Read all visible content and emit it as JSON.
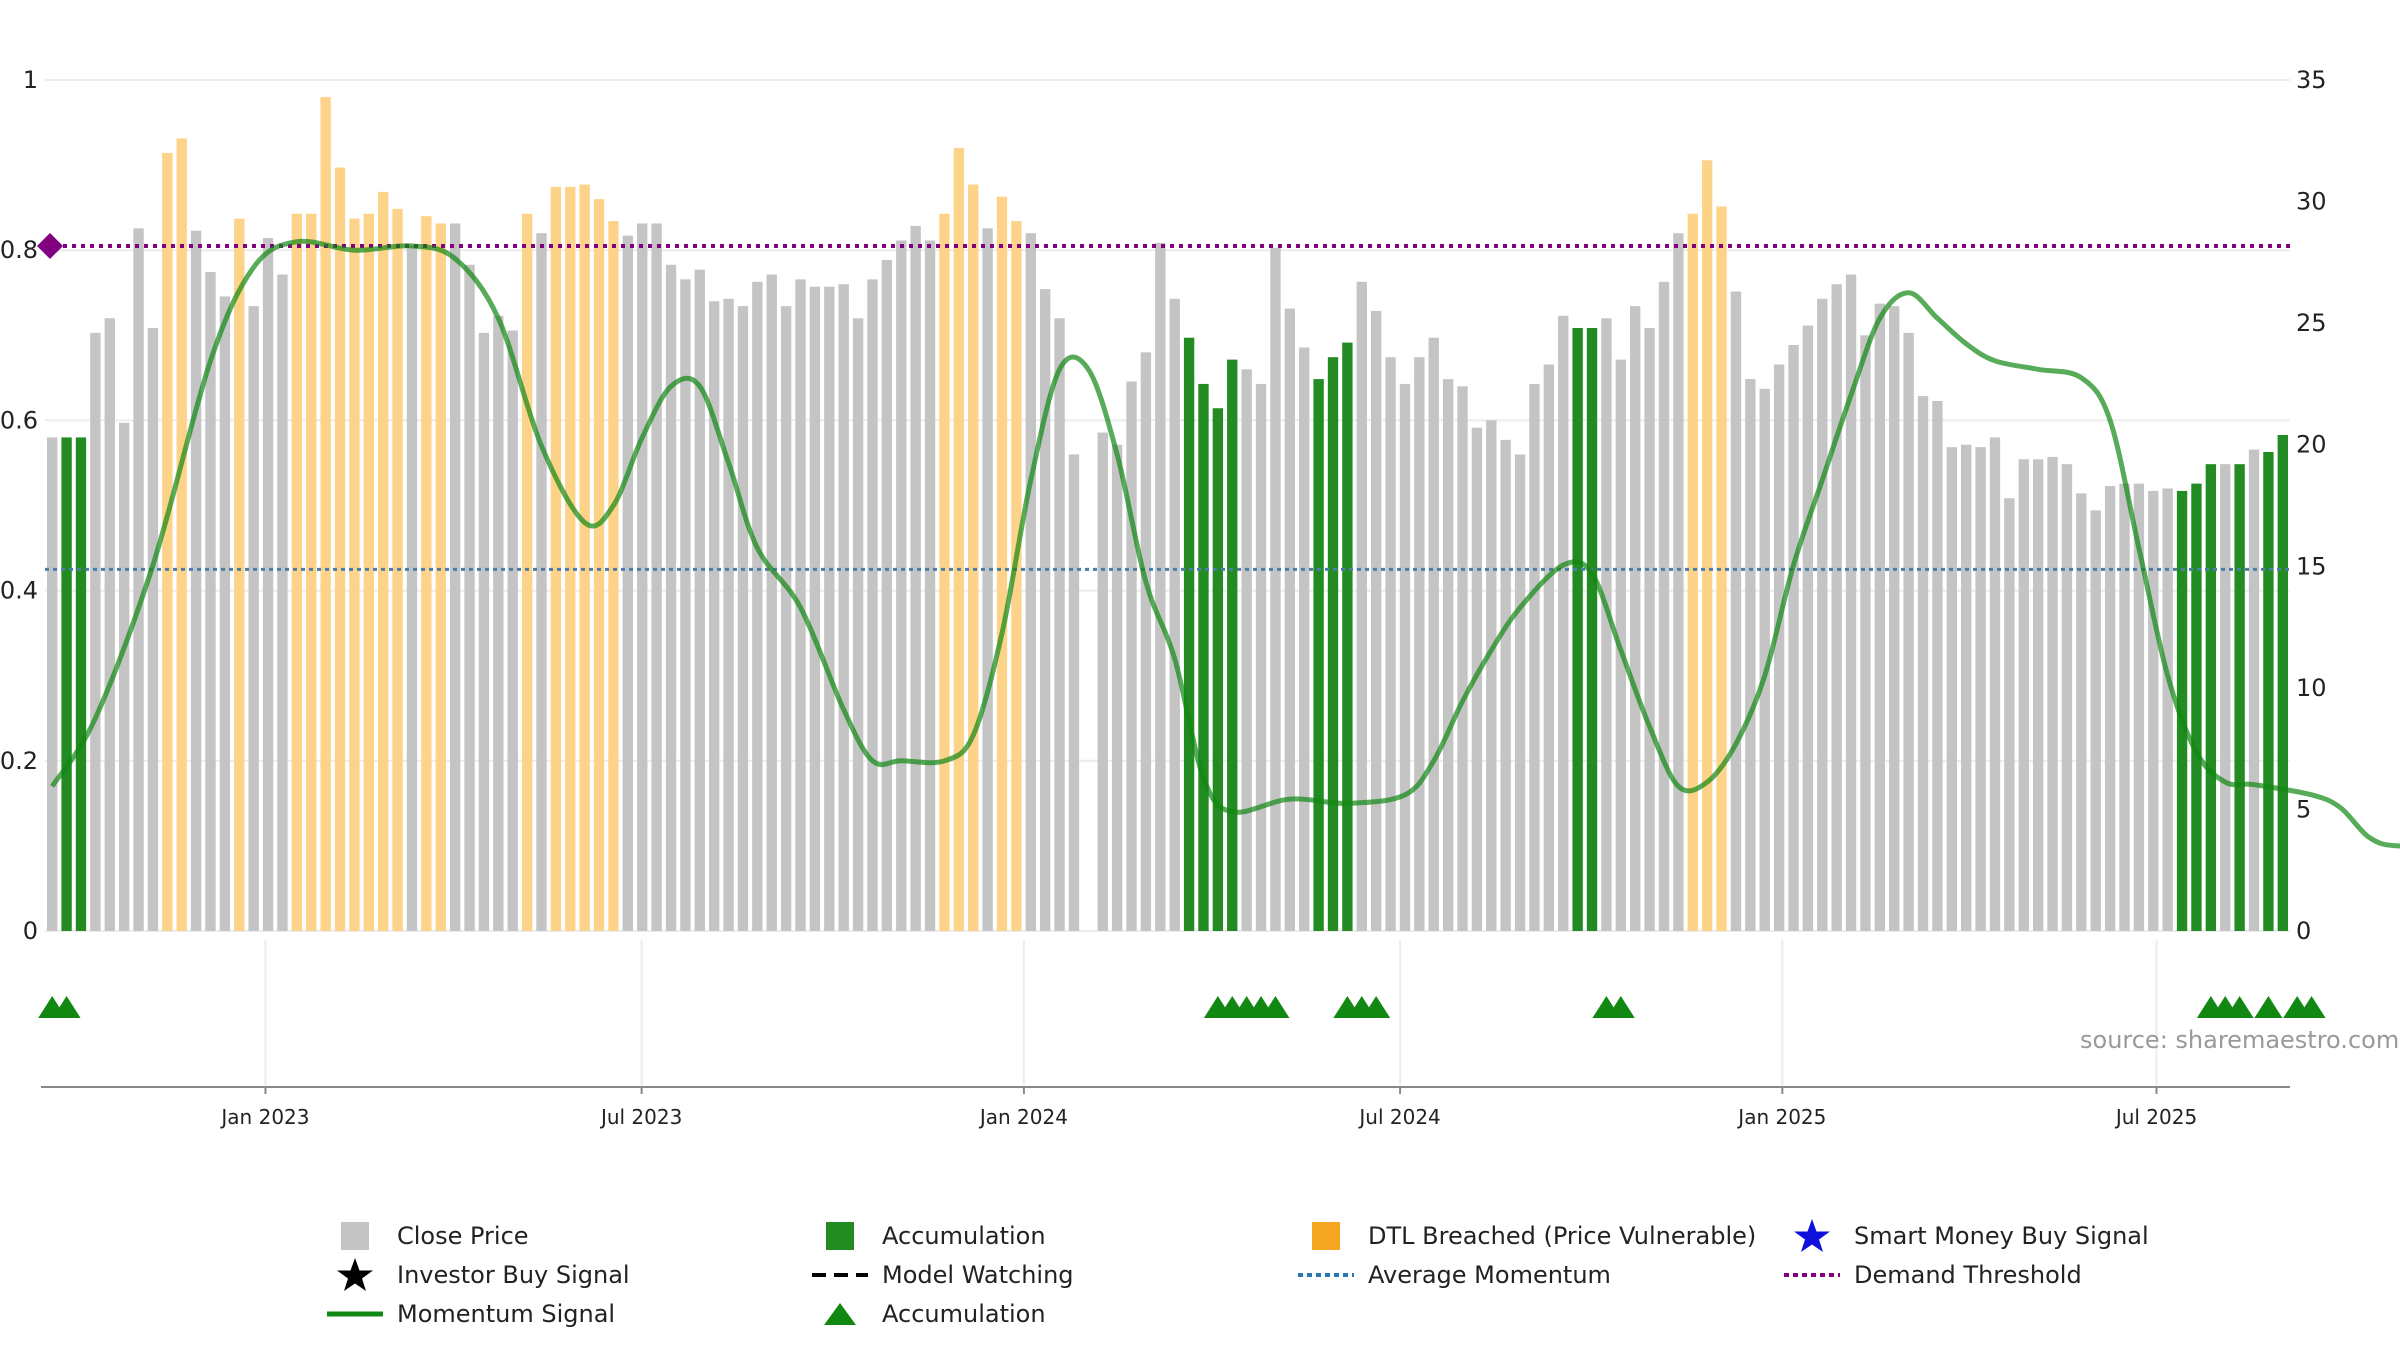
{
  "chart_data": {
    "type": "bar",
    "x_ticks": [
      "Jan 2023",
      "Jul 2023",
      "Jan 2024",
      "Jul 2024",
      "Jan 2025",
      "Jul 2025"
    ],
    "y_left_ticks": [
      "0",
      "0.2",
      "0.4",
      "0.6",
      "0.8",
      "1"
    ],
    "y_right_ticks": [
      "0",
      "5",
      "10",
      "15",
      "20",
      "25",
      "30",
      "35"
    ],
    "ylim_left": [
      0,
      1
    ],
    "ylim_right": [
      0,
      35
    ],
    "average_momentum": 0.425,
    "demand_threshold": 0.805,
    "bar_status_codes": "G = Accumulation, Y = DTL Breached (Price Vulnerable), N = Close Price",
    "bars": [
      [
        20.3,
        "N"
      ],
      [
        20.3,
        "G"
      ],
      [
        20.3,
        "G"
      ],
      [
        24.6,
        "N"
      ],
      [
        25.2,
        "N"
      ],
      [
        20.9,
        "N"
      ],
      [
        28.9,
        "N"
      ],
      [
        24.8,
        "N"
      ],
      [
        32.0,
        "Y"
      ],
      [
        32.6,
        "Y"
      ],
      [
        28.8,
        "N"
      ],
      [
        27.1,
        "N"
      ],
      [
        26.1,
        "N"
      ],
      [
        29.3,
        "Y"
      ],
      [
        25.7,
        "N"
      ],
      [
        28.5,
        "N"
      ],
      [
        27.0,
        "N"
      ],
      [
        29.5,
        "Y"
      ],
      [
        29.5,
        "Y"
      ],
      [
        34.3,
        "Y"
      ],
      [
        31.4,
        "Y"
      ],
      [
        29.3,
        "Y"
      ],
      [
        29.5,
        "Y"
      ],
      [
        30.4,
        "Y"
      ],
      [
        29.7,
        "Y"
      ],
      [
        28.2,
        "N"
      ],
      [
        29.4,
        "Y"
      ],
      [
        29.1,
        "Y"
      ],
      [
        29.1,
        "N"
      ],
      [
        27.4,
        "N"
      ],
      [
        24.6,
        "N"
      ],
      [
        25.3,
        "N"
      ],
      [
        24.7,
        "N"
      ],
      [
        29.5,
        "Y"
      ],
      [
        28.7,
        "N"
      ],
      [
        30.6,
        "Y"
      ],
      [
        30.6,
        "Y"
      ],
      [
        30.7,
        "Y"
      ],
      [
        30.1,
        "Y"
      ],
      [
        29.2,
        "Y"
      ],
      [
        28.6,
        "N"
      ],
      [
        29.1,
        "N"
      ],
      [
        29.1,
        "N"
      ],
      [
        27.4,
        "N"
      ],
      [
        26.8,
        "N"
      ],
      [
        27.2,
        "N"
      ],
      [
        25.9,
        "N"
      ],
      [
        26.0,
        "N"
      ],
      [
        25.7,
        "N"
      ],
      [
        26.7,
        "N"
      ],
      [
        27.0,
        "N"
      ],
      [
        25.7,
        "N"
      ],
      [
        26.8,
        "N"
      ],
      [
        26.5,
        "N"
      ],
      [
        26.5,
        "N"
      ],
      [
        26.6,
        "N"
      ],
      [
        25.2,
        "N"
      ],
      [
        26.8,
        "N"
      ],
      [
        27.6,
        "N"
      ],
      [
        28.4,
        "N"
      ],
      [
        29.0,
        "N"
      ],
      [
        28.4,
        "N"
      ],
      [
        29.5,
        "Y"
      ],
      [
        32.2,
        "Y"
      ],
      [
        30.7,
        "Y"
      ],
      [
        28.9,
        "N"
      ],
      [
        30.2,
        "Y"
      ],
      [
        29.2,
        "Y"
      ],
      [
        28.7,
        "N"
      ],
      [
        26.4,
        "N"
      ],
      [
        25.2,
        "N"
      ],
      [
        19.6,
        "N"
      ],
      [
        0,
        "N"
      ],
      [
        20.5,
        "N"
      ],
      [
        20.0,
        "N"
      ],
      [
        22.6,
        "N"
      ],
      [
        23.8,
        "N"
      ],
      [
        28.3,
        "N"
      ],
      [
        26.0,
        "N"
      ],
      [
        24.4,
        "G"
      ],
      [
        22.5,
        "G"
      ],
      [
        21.5,
        "G"
      ],
      [
        23.5,
        "G"
      ],
      [
        23.1,
        "N"
      ],
      [
        22.5,
        "N"
      ],
      [
        28.1,
        "N"
      ],
      [
        25.6,
        "N"
      ],
      [
        24.0,
        "N"
      ],
      [
        22.7,
        "G"
      ],
      [
        23.6,
        "G"
      ],
      [
        24.2,
        "G"
      ],
      [
        26.7,
        "N"
      ],
      [
        25.5,
        "N"
      ],
      [
        23.6,
        "N"
      ],
      [
        22.5,
        "N"
      ],
      [
        23.6,
        "N"
      ],
      [
        24.4,
        "N"
      ],
      [
        22.7,
        "N"
      ],
      [
        22.4,
        "N"
      ],
      [
        20.7,
        "N"
      ],
      [
        21.0,
        "N"
      ],
      [
        20.2,
        "N"
      ],
      [
        19.6,
        "N"
      ],
      [
        22.5,
        "N"
      ],
      [
        23.3,
        "N"
      ],
      [
        25.3,
        "N"
      ],
      [
        24.8,
        "G"
      ],
      [
        24.8,
        "G"
      ],
      [
        25.2,
        "N"
      ],
      [
        23.5,
        "N"
      ],
      [
        25.7,
        "N"
      ],
      [
        24.8,
        "N"
      ],
      [
        26.7,
        "N"
      ],
      [
        28.7,
        "N"
      ],
      [
        29.5,
        "Y"
      ],
      [
        31.7,
        "Y"
      ],
      [
        29.8,
        "Y"
      ],
      [
        26.3,
        "N"
      ],
      [
        22.7,
        "N"
      ],
      [
        22.3,
        "N"
      ],
      [
        23.3,
        "N"
      ],
      [
        24.1,
        "N"
      ],
      [
        24.9,
        "N"
      ],
      [
        26.0,
        "N"
      ],
      [
        26.6,
        "N"
      ],
      [
        27.0,
        "N"
      ],
      [
        24.5,
        "N"
      ],
      [
        25.8,
        "N"
      ],
      [
        25.7,
        "N"
      ],
      [
        24.6,
        "N"
      ],
      [
        22.0,
        "N"
      ],
      [
        21.8,
        "N"
      ],
      [
        19.9,
        "N"
      ],
      [
        20.0,
        "N"
      ],
      [
        19.9,
        "N"
      ],
      [
        20.3,
        "N"
      ],
      [
        17.8,
        "N"
      ],
      [
        19.4,
        "N"
      ],
      [
        19.4,
        "N"
      ],
      [
        19.5,
        "N"
      ],
      [
        19.2,
        "N"
      ],
      [
        18.0,
        "N"
      ],
      [
        17.3,
        "N"
      ],
      [
        18.3,
        "N"
      ],
      [
        18.4,
        "N"
      ],
      [
        18.4,
        "N"
      ],
      [
        18.1,
        "N"
      ],
      [
        18.2,
        "N"
      ],
      [
        18.1,
        "G"
      ],
      [
        18.4,
        "G"
      ],
      [
        19.2,
        "G"
      ],
      [
        19.2,
        "N"
      ],
      [
        19.2,
        "G"
      ],
      [
        19.8,
        "N"
      ],
      [
        19.7,
        "G"
      ],
      [
        20.4,
        "G"
      ]
    ],
    "momentum": [
      [
        0,
        0.17
      ],
      [
        3,
        0.25
      ],
      [
        7,
        0.43
      ],
      [
        11,
        0.67
      ],
      [
        14,
        0.78
      ],
      [
        17,
        0.81
      ],
      [
        21,
        0.8
      ],
      [
        25,
        0.805
      ],
      [
        28,
        0.79
      ],
      [
        31,
        0.72
      ],
      [
        34,
        0.57
      ],
      [
        37,
        0.48
      ],
      [
        39,
        0.5
      ],
      [
        41,
        0.58
      ],
      [
        43,
        0.64
      ],
      [
        45,
        0.64
      ],
      [
        47,
        0.55
      ],
      [
        49,
        0.45
      ],
      [
        52,
        0.38
      ],
      [
        55,
        0.26
      ],
      [
        57,
        0.2
      ],
      [
        59,
        0.2
      ],
      [
        62,
        0.2
      ],
      [
        64,
        0.23
      ],
      [
        66,
        0.35
      ],
      [
        68,
        0.53
      ],
      [
        70,
        0.66
      ],
      [
        72,
        0.66
      ],
      [
        74,
        0.56
      ],
      [
        76,
        0.41
      ],
      [
        78,
        0.32
      ],
      [
        80,
        0.18
      ],
      [
        82,
        0.14
      ],
      [
        86,
        0.155
      ],
      [
        90,
        0.15
      ],
      [
        94,
        0.16
      ],
      [
        96,
        0.2
      ],
      [
        98,
        0.27
      ],
      [
        100,
        0.33
      ],
      [
        102,
        0.38
      ],
      [
        105,
        0.43
      ],
      [
        107,
        0.42
      ],
      [
        109,
        0.33
      ],
      [
        111,
        0.24
      ],
      [
        113,
        0.17
      ],
      [
        115,
        0.175
      ],
      [
        117,
        0.22
      ],
      [
        119,
        0.3
      ],
      [
        121,
        0.43
      ],
      [
        123,
        0.53
      ],
      [
        125,
        0.63
      ],
      [
        127,
        0.72
      ],
      [
        129,
        0.75
      ],
      [
        131,
        0.72
      ],
      [
        133,
        0.69
      ],
      [
        135,
        0.67
      ],
      [
        138,
        0.66
      ],
      [
        141,
        0.65
      ],
      [
        143,
        0.6
      ],
      [
        145,
        0.45
      ],
      [
        147,
        0.3
      ],
      [
        149,
        0.21
      ],
      [
        151,
        0.175
      ],
      [
        153,
        0.172
      ],
      [
        157,
        0.16
      ],
      [
        159,
        0.145
      ],
      [
        161,
        0.11
      ],
      [
        163,
        0.1
      ],
      [
        167,
        0.105
      ],
      [
        169,
        0.115
      ],
      [
        171,
        0.135
      ],
      [
        173,
        0.138
      ],
      [
        176,
        0.155
      ]
    ],
    "accumulation_markers": [
      0,
      1,
      81,
      82,
      83,
      84,
      85,
      90,
      91,
      92,
      108,
      109,
      150,
      151,
      152,
      154,
      156,
      157
    ],
    "legend": [
      {
        "label": "Close Price",
        "symbol": "gray-square"
      },
      {
        "label": "Accumulation",
        "symbol": "green-square"
      },
      {
        "label": "DTL Breached (Price Vulnerable)",
        "symbol": "orange-square"
      },
      {
        "label": "Smart Money Buy Signal",
        "symbol": "blue-star"
      },
      {
        "label": "Investor Buy Signal",
        "symbol": "black-star"
      },
      {
        "label": "Model Watching",
        "symbol": "black-dashed-line"
      },
      {
        "label": "Average Momentum",
        "symbol": "blue-dotted-line"
      },
      {
        "label": "Demand Threshold",
        "symbol": "purple-dotted-line"
      },
      {
        "label": "Momentum Signal",
        "symbol": "green-line"
      },
      {
        "label": "Accumulation",
        "symbol": "green-triangle"
      }
    ],
    "source": "source: sharemaestro.com",
    "colors": {
      "close_price": "#c4c4c4",
      "accumulation": "#228b22",
      "dtl_breached": "#fdd38a",
      "momentum": "#118811",
      "average_momentum": "#4a7ea8",
      "demand_threshold": "#800080",
      "smart_money": "#1010dd"
    }
  }
}
